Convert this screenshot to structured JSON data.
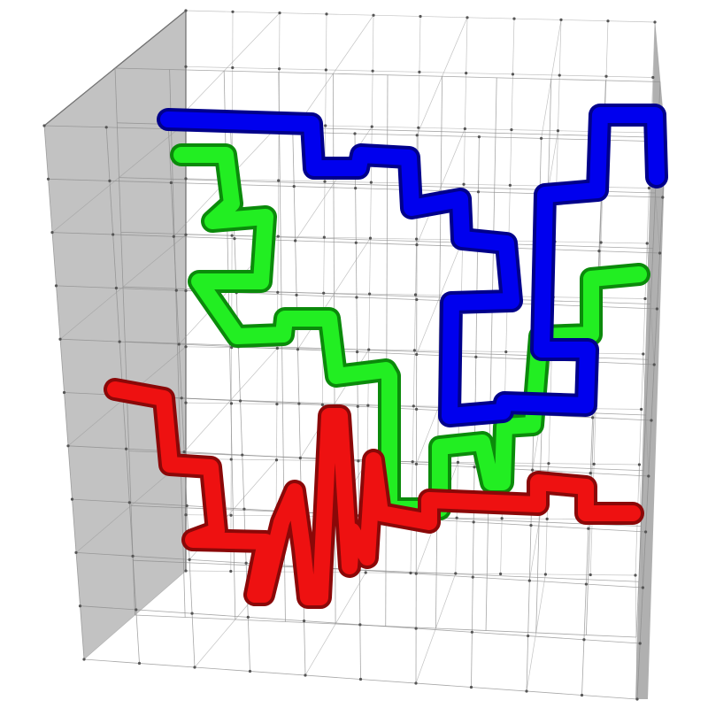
{
  "scene": {
    "background": "#ffffff",
    "grid_color": "#8a8a8a",
    "wall_color": "#8f8f8f"
  },
  "paths": [
    {
      "color_name": "blue",
      "color": "#0000ee",
      "shade": "#00008a"
    },
    {
      "color_name": "green",
      "color": "#22ee22",
      "shade": "#0b8a0b"
    },
    {
      "color_name": "red",
      "color": "#ee1111",
      "shade": "#8a0808"
    }
  ]
}
